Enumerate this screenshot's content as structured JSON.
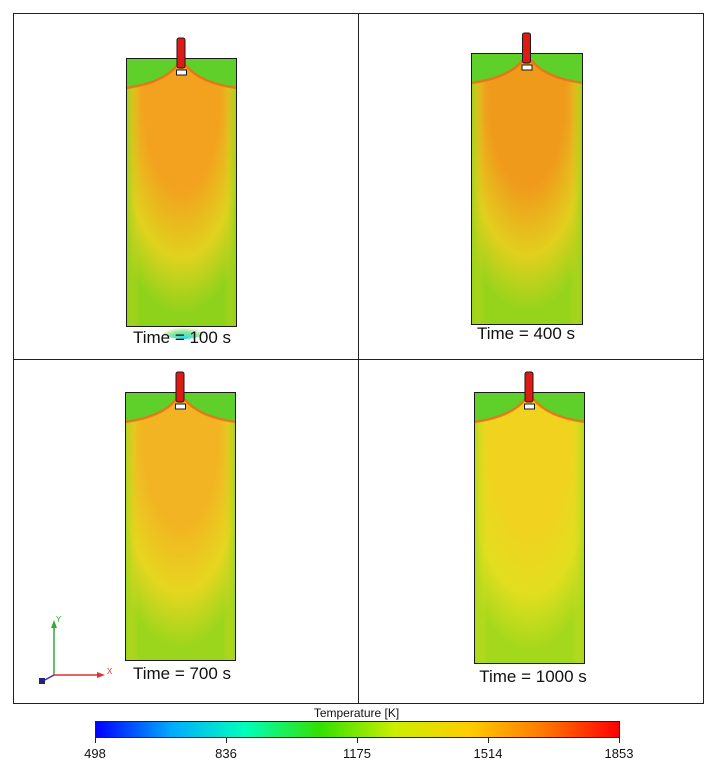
{
  "figure": {
    "panels": [
      {
        "time_label": "Time = 100 s",
        "t_seconds": 100,
        "core_color": "#f2a21f",
        "mid_color": "#e0d21e",
        "wall_color": "#8ed21c",
        "cold_spot": true
      },
      {
        "time_label": "Time = 400 s",
        "t_seconds": 400,
        "core_color": "#f09a1c",
        "mid_color": "#e2cf1e",
        "wall_color": "#95d41b",
        "cold_spot": false
      },
      {
        "time_label": "Time = 700 s",
        "t_seconds": 700,
        "core_color": "#f2b422",
        "mid_color": "#e6d620",
        "wall_color": "#9bd61c",
        "cold_spot": false
      },
      {
        "time_label": "Time = 1000 s",
        "t_seconds": 1000,
        "core_color": "#f1d21f",
        "mid_color": "#e2de1f",
        "wall_color": "#a4d81c",
        "cold_spot": false
      }
    ],
    "axes_triad": {
      "y_label": "Y",
      "x_label": "X"
    },
    "colorbar": {
      "title": "Temperature [K]",
      "min": 498,
      "max": 1853,
      "ticks": [
        "498",
        "836",
        "1175",
        "1514",
        "1853"
      ],
      "colormap": [
        "#0000ff",
        "#00aaff",
        "#00ffbb",
        "#33e000",
        "#ccee00",
        "#ffcc00",
        "#ff7700",
        "#ff0000"
      ]
    },
    "colors": {
      "hot_nozzle": "#dd1a14",
      "top_band": "#5fcf2a",
      "outline": "#1a1a1a"
    }
  }
}
